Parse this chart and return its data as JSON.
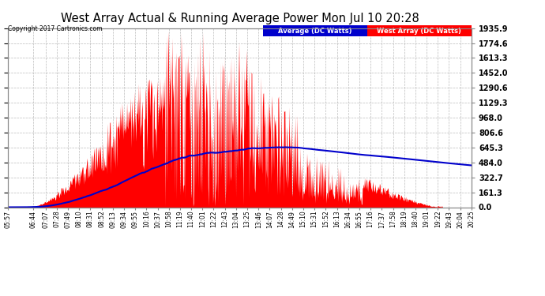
{
  "title": "West Array Actual & Running Average Power Mon Jul 10 20:28",
  "copyright": "Copyright 2017 Cartronics.com",
  "legend_avg": "Average (DC Watts)",
  "legend_west": "West Array (DC Watts)",
  "ylabel_right_values": [
    0.0,
    161.3,
    322.7,
    484.0,
    645.3,
    806.6,
    968.0,
    1129.3,
    1290.6,
    1452.0,
    1613.3,
    1774.6,
    1935.9
  ],
  "ymax": 1935.9,
  "ymin": 0.0,
  "bg_color": "#ffffff",
  "plot_bg_color": "#ffffff",
  "red_color": "#ff0000",
  "blue_color": "#0000cc",
  "grid_color": "#aaaaaa",
  "xtick_labels": [
    "05:57",
    "06:44",
    "07:07",
    "07:28",
    "07:49",
    "08:10",
    "08:31",
    "08:52",
    "09:13",
    "09:34",
    "09:55",
    "10:16",
    "10:37",
    "10:58",
    "11:19",
    "11:40",
    "12:01",
    "12:22",
    "12:43",
    "13:04",
    "13:25",
    "13:46",
    "14:07",
    "14:28",
    "14:49",
    "15:10",
    "15:31",
    "15:52",
    "16:13",
    "16:34",
    "16:55",
    "17:16",
    "17:37",
    "17:58",
    "18:19",
    "18:40",
    "19:01",
    "19:22",
    "19:43",
    "20:04",
    "20:25"
  ]
}
